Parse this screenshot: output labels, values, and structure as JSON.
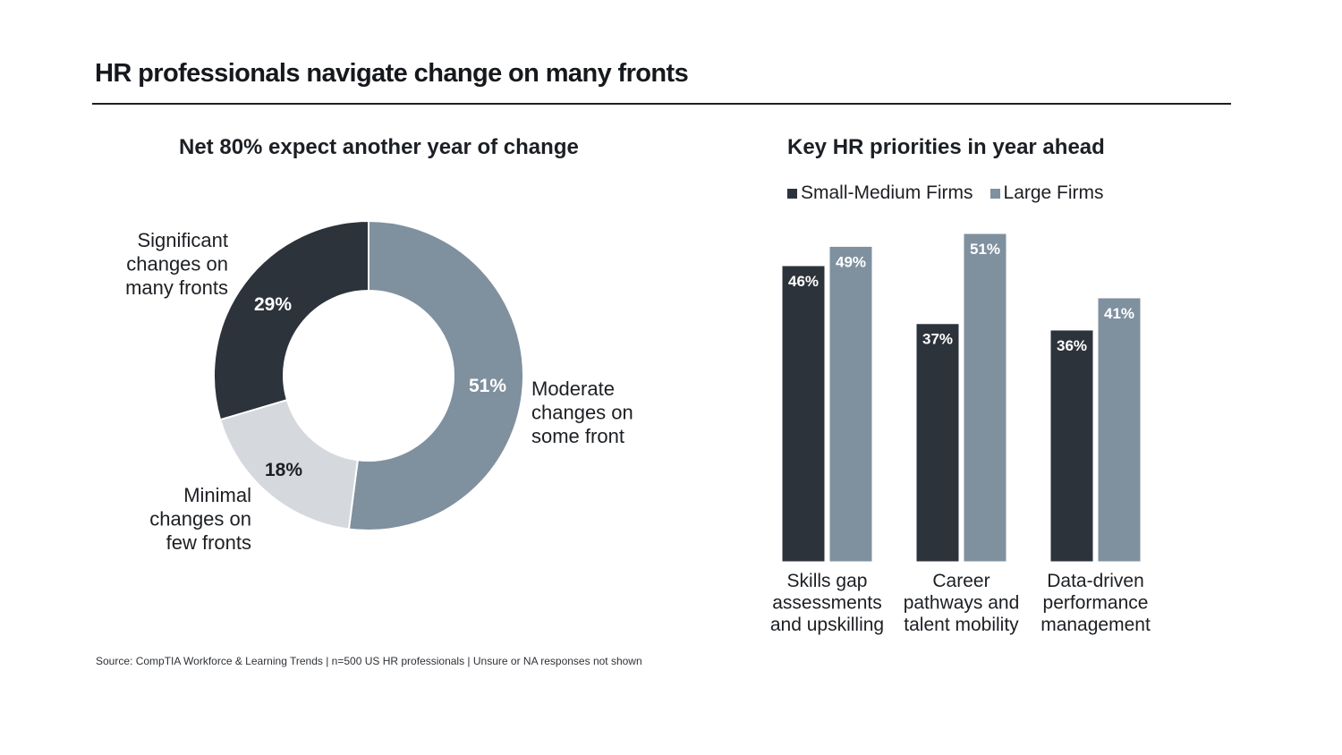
{
  "page": {
    "title": "HR professionals navigate change on many fronts",
    "source": "Source: CompTIA Workforce & Learning Trends | n=500 US HR professionals | Unsure or NA responses not shown"
  },
  "colors": {
    "dark": "#2d333a",
    "mid": "#7f909f",
    "light": "#d5d9de",
    "text": "#1c1f23"
  },
  "chart_data": [
    {
      "type": "pie",
      "title": "Net 80% expect another year of change",
      "slices": [
        {
          "label": "Moderate changes on some front",
          "label_lines": [
            "Moderate",
            "changes on",
            "some front"
          ],
          "value": 51,
          "display": "51%"
        },
        {
          "label": "Minimal changes on few fronts",
          "label_lines": [
            "Minimal",
            "changes on",
            "few fronts"
          ],
          "value": 18,
          "display": "18%"
        },
        {
          "label": "Significant changes on many fronts",
          "label_lines": [
            "Significant",
            "changes on",
            "many fronts"
          ],
          "value": 29,
          "display": "29%"
        }
      ]
    },
    {
      "type": "bar",
      "title": "Key HR priorities in year ahead",
      "categories": [
        "Skills gap assessments and upskilling",
        "Career pathways and talent mobility",
        "Data-driven performance management"
      ],
      "category_lines": [
        [
          "Skills gap",
          "assessments",
          "and upskilling"
        ],
        [
          "Career",
          "pathways and",
          "talent mobility"
        ],
        [
          "Data-driven",
          "performance",
          "management"
        ]
      ],
      "series": [
        {
          "name": "Small-Medium Firms",
          "values": [
            46,
            37,
            36
          ],
          "labels": [
            "46%",
            "37%",
            "36%"
          ]
        },
        {
          "name": "Large Firms",
          "values": [
            49,
            51,
            41
          ],
          "labels": [
            "49%",
            "51%",
            "41%"
          ]
        }
      ],
      "ylim": [
        0,
        51
      ],
      "legend": "top-left"
    }
  ]
}
